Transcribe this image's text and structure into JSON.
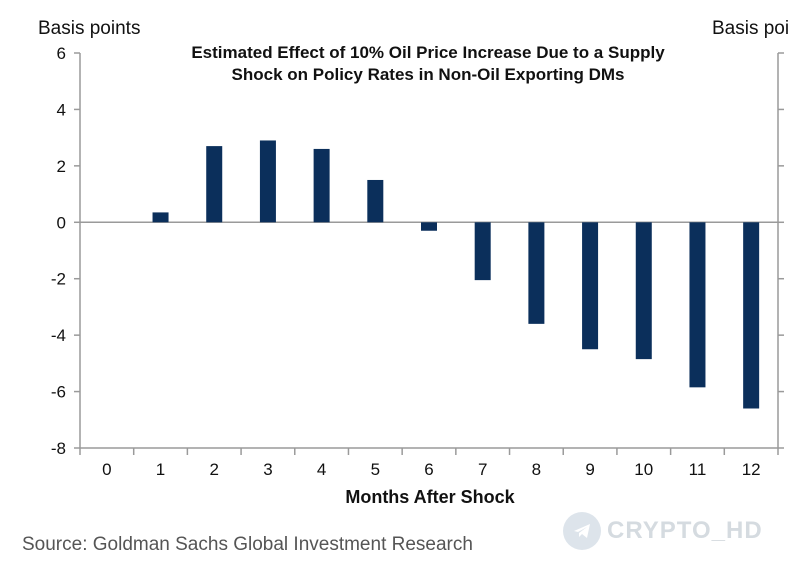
{
  "chart_data": {
    "type": "bar",
    "title_lines": [
      "Estimated Effect of 10% Oil Price Increase Due to a Supply",
      "Shock on Policy Rates in Non-Oil Exporting DMs"
    ],
    "ylabel_left": "Basis points",
    "ylabel_right": "Basis poi",
    "xlabel": "Months After Shock",
    "categories": [
      "0",
      "1",
      "2",
      "3",
      "4",
      "5",
      "6",
      "7",
      "8",
      "9",
      "10",
      "11",
      "12"
    ],
    "values": [
      0,
      0.35,
      2.7,
      2.9,
      2.6,
      1.5,
      -0.3,
      -2.05,
      -3.6,
      -4.5,
      -4.85,
      -5.85,
      -6.6
    ],
    "ylim": [
      -8,
      6
    ],
    "yticks": [
      6,
      4,
      2,
      0,
      -2,
      -4,
      -6,
      -8
    ],
    "ytick_labels": [
      "6",
      "4",
      "2",
      "0",
      "-2",
      "-4",
      "-6",
      "-8"
    ],
    "bar_color": "#0b2f5b",
    "grid": false
  },
  "source": "Source: Goldman Sachs Global Investment Research",
  "watermark": "CRYPTO_HD"
}
